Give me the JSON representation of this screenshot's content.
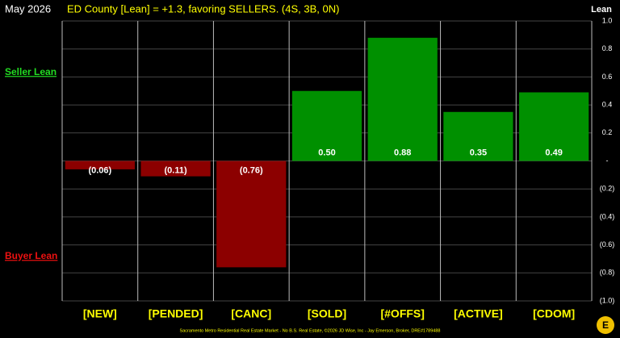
{
  "chart_data": {
    "type": "bar",
    "date": "May 2026",
    "title": "ED County [Lean] = +1.3, favoring SELLERS. (4S, 3B, 0N)",
    "y_label": "Lean",
    "upper_annotation": "Seller Lean",
    "lower_annotation": "Buyer Lean",
    "footer": "Sacramento Metro Residential Real Estate Market - No B.S. Real Estate, ©2026 JD Wise, Inc - Jay Emerson, Broker, DRE#1789488",
    "categories": [
      "[NEW]",
      "[PENDED]",
      "[CANC]",
      "[SOLD]",
      "[#OFFS]",
      "[ACTIVE]",
      "[CDOM]"
    ],
    "values": [
      -0.06,
      -0.11,
      -0.76,
      0.5,
      0.88,
      0.35,
      0.49
    ],
    "value_labels": [
      "(0.06)",
      "(0.11)",
      "(0.76)",
      "0.50",
      "0.88",
      "0.35",
      "0.49"
    ],
    "positive_color": "#009000",
    "negative_color": "#8c0000",
    "ylim": [
      -1,
      1
    ],
    "yticks": [
      {
        "value": 1,
        "label": "1.0"
      },
      0.8,
      0.6,
      0.4,
      0.2,
      {
        "value": 0,
        "label": "-"
      },
      {
        "value": -0.2,
        "label": "(0.2)"
      },
      {
        "value": -0.4,
        "label": "(0.4)"
      },
      {
        "value": -0.6,
        "label": "(0.6)"
      },
      {
        "value": -0.8,
        "label": "(0.8)"
      },
      {
        "value": -1,
        "label": "(1.0)"
      }
    ],
    "grid": true
  }
}
